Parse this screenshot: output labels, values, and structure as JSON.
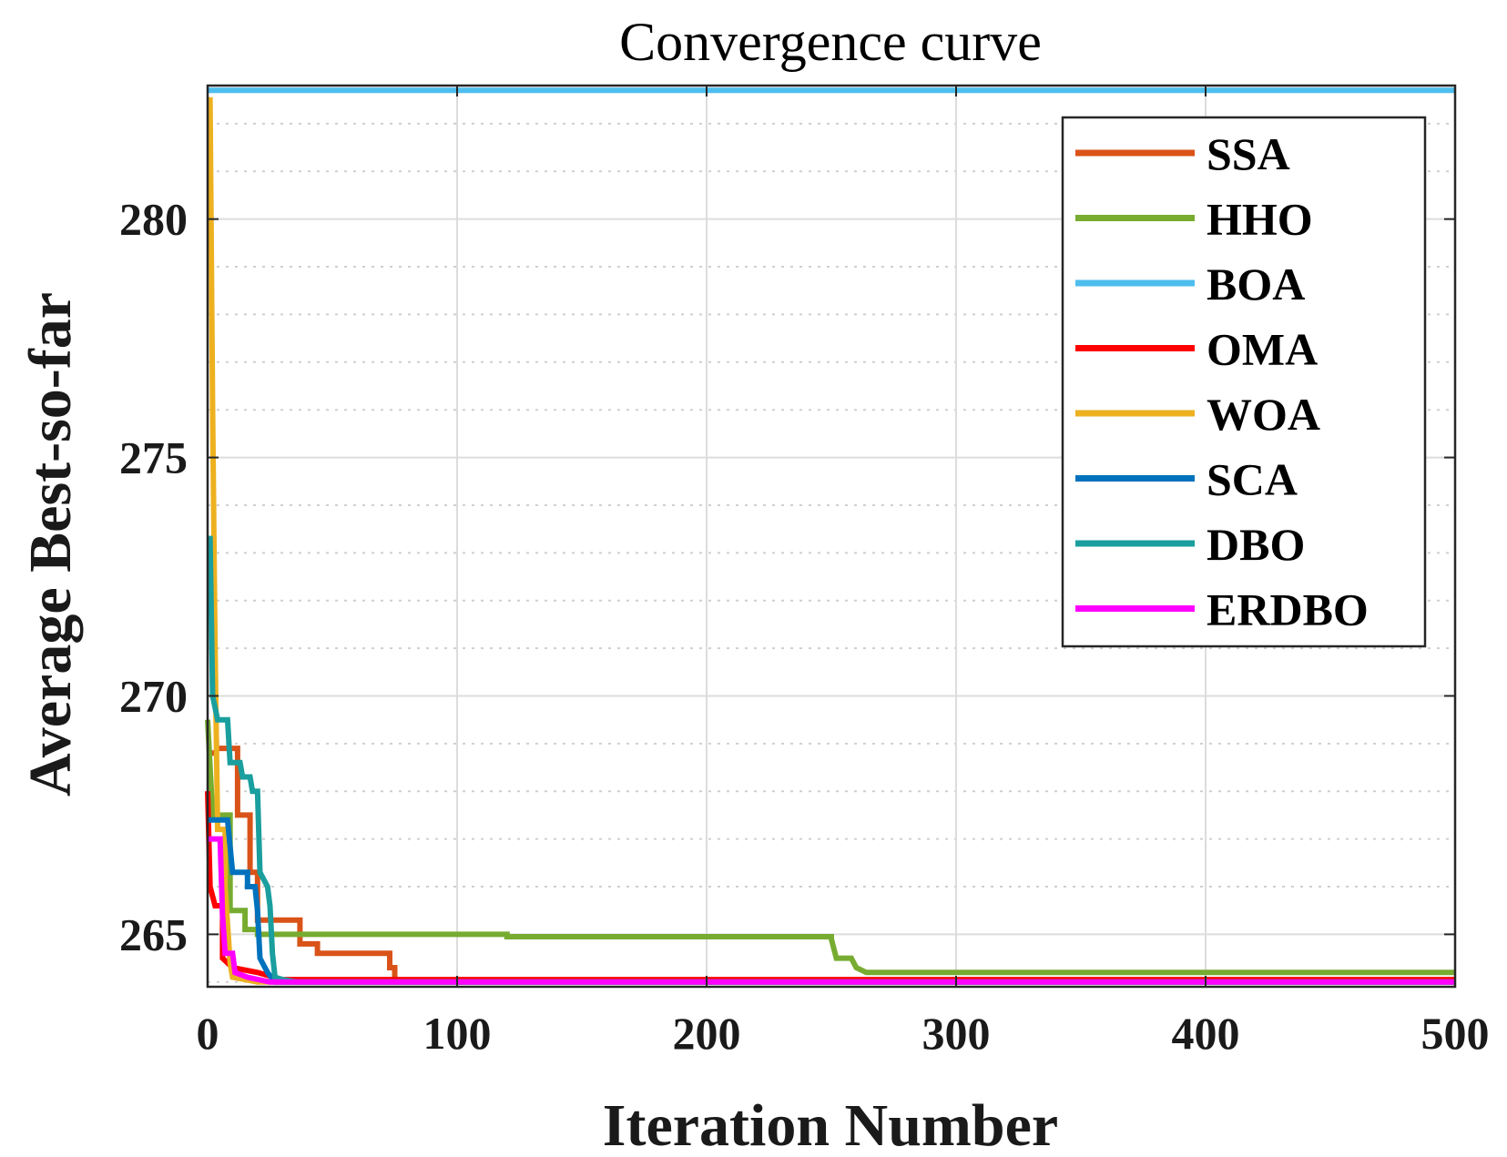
{
  "chart_data": {
    "type": "line",
    "title": "Convergence curve",
    "xlabel": "Iteration Number",
    "ylabel": "Average Best-so-far",
    "xlim": [
      0,
      500
    ],
    "ylim": [
      263.9,
      282.8
    ],
    "xticks": [
      0,
      100,
      200,
      300,
      400,
      500
    ],
    "yticks": [
      265,
      270,
      275,
      280
    ],
    "grid": true,
    "legend_position": "top-right",
    "series": [
      {
        "name": "SSA",
        "color": "#D95319",
        "points": [
          [
            0,
            268.8
          ],
          [
            3,
            268.8
          ],
          [
            4,
            268.9
          ],
          [
            12,
            268.9
          ],
          [
            12,
            267.5
          ],
          [
            17,
            267.5
          ],
          [
            17,
            266.3
          ],
          [
            20,
            266.3
          ],
          [
            20,
            265.3
          ],
          [
            37,
            265.3
          ],
          [
            37,
            264.8
          ],
          [
            44,
            264.8
          ],
          [
            44,
            264.6
          ],
          [
            73,
            264.6
          ],
          [
            73,
            264.3
          ],
          [
            75,
            264.3
          ],
          [
            75,
            264.0
          ],
          [
            500,
            264.0
          ]
        ]
      },
      {
        "name": "HHO",
        "color": "#77AC30",
        "points": [
          [
            0,
            269.5
          ],
          [
            2,
            267.5
          ],
          [
            9,
            267.5
          ],
          [
            9,
            265.5
          ],
          [
            15,
            265.5
          ],
          [
            15,
            265.1
          ],
          [
            20,
            265.1
          ],
          [
            20,
            265.0
          ],
          [
            120,
            265.0
          ],
          [
            120,
            264.95
          ],
          [
            250,
            264.95
          ],
          [
            250,
            264.9
          ],
          [
            252,
            264.5
          ],
          [
            258,
            264.5
          ],
          [
            260,
            264.3
          ],
          [
            264,
            264.2
          ],
          [
            500,
            264.2
          ]
        ]
      },
      {
        "name": "BOA",
        "color": "#4DBEEE",
        "points": [
          [
            0,
            282.7
          ],
          [
            500,
            282.7
          ]
        ]
      },
      {
        "name": "OMA",
        "color": "#FF0000",
        "points": [
          [
            0,
            268.0
          ],
          [
            1,
            266.0
          ],
          [
            3,
            265.6
          ],
          [
            6,
            265.6
          ],
          [
            6,
            264.5
          ],
          [
            10,
            264.3
          ],
          [
            20,
            264.2
          ],
          [
            30,
            264.05
          ],
          [
            500,
            264.05
          ]
        ]
      },
      {
        "name": "WOA",
        "color": "#EDB120",
        "points": [
          [
            0,
            282.5
          ],
          [
            1,
            282.5
          ],
          [
            2,
            276.0
          ],
          [
            3,
            271.0
          ],
          [
            4,
            267.2
          ],
          [
            7,
            267.2
          ],
          [
            7,
            266.0
          ],
          [
            9,
            264.4
          ],
          [
            10,
            264.1
          ],
          [
            20,
            264.0
          ],
          [
            500,
            264.0
          ]
        ]
      },
      {
        "name": "SCA",
        "color": "#0072BD",
        "points": [
          [
            0,
            267.4
          ],
          [
            8,
            267.4
          ],
          [
            10,
            266.3
          ],
          [
            16,
            266.3
          ],
          [
            16,
            266.0
          ],
          [
            19,
            266.0
          ],
          [
            20,
            265.5
          ],
          [
            21,
            264.5
          ],
          [
            24,
            264.2
          ],
          [
            27,
            264.0
          ],
          [
            500,
            264.0
          ]
        ]
      },
      {
        "name": "DBO",
        "color": "#1A9E9E",
        "points": [
          [
            0,
            273.3
          ],
          [
            1,
            273.3
          ],
          [
            2,
            270.0
          ],
          [
            4,
            269.5
          ],
          [
            8,
            269.5
          ],
          [
            9,
            268.6
          ],
          [
            13,
            268.6
          ],
          [
            14,
            268.3
          ],
          [
            17,
            268.3
          ],
          [
            18,
            268.0
          ],
          [
            20,
            268.0
          ],
          [
            21,
            266.3
          ],
          [
            24,
            266.0
          ],
          [
            25,
            265.6
          ],
          [
            26,
            264.6
          ],
          [
            27,
            264.1
          ],
          [
            30,
            264.05
          ],
          [
            36,
            264.0
          ],
          [
            500,
            264.0
          ]
        ]
      },
      {
        "name": "ERDBO",
        "color": "#FF00FF",
        "points": [
          [
            0,
            267.0
          ],
          [
            5,
            267.0
          ],
          [
            6,
            265.4
          ],
          [
            7,
            264.6
          ],
          [
            10,
            264.6
          ],
          [
            11,
            264.2
          ],
          [
            16,
            264.1
          ],
          [
            25,
            264.0
          ],
          [
            500,
            264.0
          ]
        ]
      }
    ]
  }
}
